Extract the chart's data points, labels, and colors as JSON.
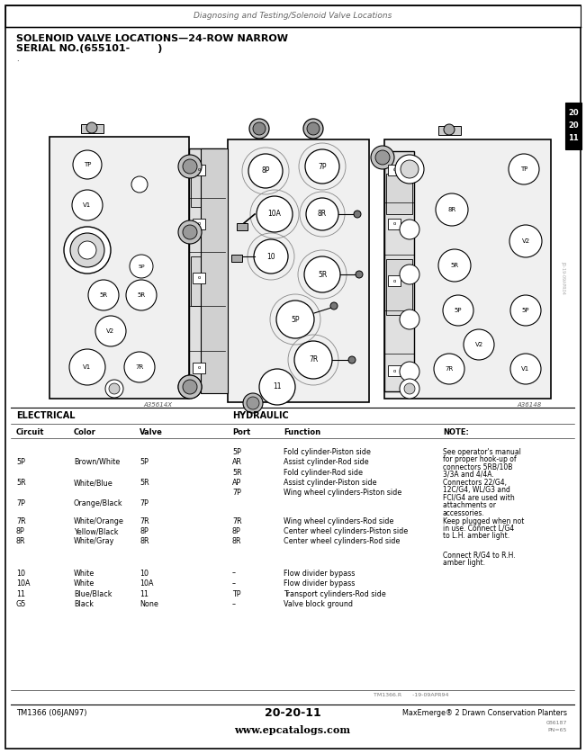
{
  "title_header": "Diagnosing and Testing/Solenoid Valve Locations",
  "main_title_line1": "SOLENOID VALVE LOCATIONS—24-ROW NARROW",
  "main_title_line2": "SERIAL NO.(655101-        )",
  "bg_color": "#ffffff",
  "electrical_label": "ELECTRICAL",
  "hydraulic_label": "HYDRAULIC",
  "col_headers": [
    "Circuit",
    "Color",
    "Valve",
    "Port",
    "Function",
    "NOTE:"
  ],
  "table_rows": [
    [
      "",
      "",
      "",
      "5P",
      "Fold cylinder-Piston side",
      "See operator's manual\nfor proper hook-up of\nconnectors 5RB/10B\n3/3A and 4/4A."
    ],
    [
      "5P",
      "Brown/White",
      "5P",
      "AR",
      "Assist cylinder-Rod side",
      ""
    ],
    [
      "",
      "",
      "",
      "5R",
      "Fold cylinder-Rod side",
      ""
    ],
    [
      "5R",
      "White/Blue",
      "5R",
      "AP",
      "Assist cylinder-Piston side",
      "Connectors 22/G4,\n12C/G4, WL/G3 and\nFCI/G4 are used with\nattachments or\naccessories."
    ],
    [
      "",
      "",
      "",
      "7P",
      "Wing wheel cylinders-Piston side",
      ""
    ],
    [
      "7P",
      "Orange/Black",
      "7P",
      "",
      "",
      ""
    ],
    [
      "7R",
      "White/Orange",
      "7R",
      "7R",
      "Wing wheel cylinders-Rod side",
      "Keep plugged when not\nin use. Connect L/G4\nto L.H. amber light."
    ],
    [
      "8P",
      "Yellow/Black",
      "8P",
      "8P",
      "Center wheel cylinders-Piston side",
      ""
    ],
    [
      "8R",
      "White/Gray",
      "8R",
      "8R",
      "Center wheel cylinders-Rod side",
      ""
    ],
    [
      "",
      "",
      "",
      "",
      "",
      "Connect R/G4 to R.H.\namber light."
    ],
    [
      "10",
      "White",
      "10",
      "–",
      "Flow divider bypass",
      ""
    ],
    [
      "10A",
      "White",
      "10A",
      "–",
      "Flow divider bypass",
      ""
    ],
    [
      "11",
      "Blue/Black",
      "11",
      "TP",
      "Transport cylinders-Rod side",
      ""
    ],
    [
      "G5",
      "Black",
      "None",
      "–",
      "Valve block ground",
      ""
    ]
  ],
  "footer_left": "TM1366 (06JAN97)",
  "footer_center": "20-20-11",
  "footer_right": "MaxEmerge® 2 Drawn Conservation Planters",
  "footer_tm": "TM1366.R      -19-09APR94",
  "footer_pn": "PN=65",
  "footer_web": "www.epcatalogs.com",
  "figure_caption1": "A35614X",
  "figure_caption2": "A36148"
}
